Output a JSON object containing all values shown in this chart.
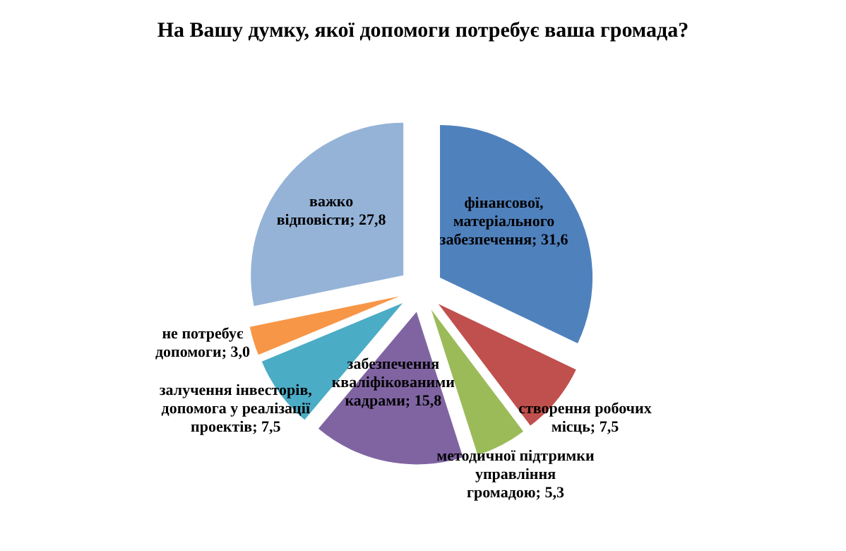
{
  "chart_data": {
    "type": "pie",
    "title": "На Вашу думку, якої допомоги потребує ваша громада?",
    "categories": [
      "фінансової, матеріального забезпечення",
      "створення робочих місць",
      "методичної підтримки управління громадою",
      "забезпечення кваліфікованими кадрами",
      "залучення інвесторів, допомога у реалізації проектів",
      "не потребує допомоги",
      "важко відповісти"
    ],
    "values": [
      31.6,
      7.5,
      5.3,
      15.8,
      7.5,
      3.0,
      27.8
    ],
    "value_labels": [
      "31,6",
      "7,5",
      "5,3",
      "15,8",
      "7,5",
      "3,0",
      "27,8"
    ],
    "colors": [
      "#4f81bd",
      "#c0504d",
      "#9bbb59",
      "#8064a2",
      "#4bacc6",
      "#f79646",
      "#95b3d7"
    ],
    "legend": false
  }
}
